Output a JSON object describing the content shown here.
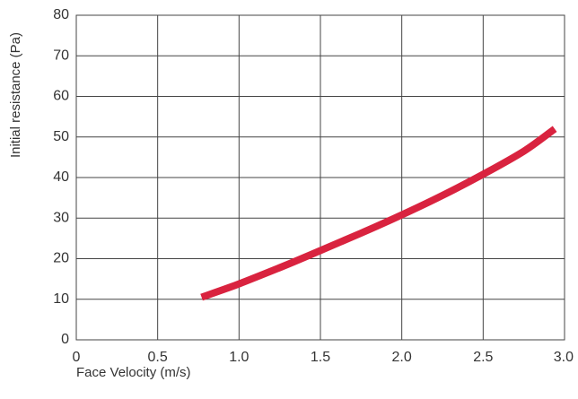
{
  "chart_data": {
    "type": "line",
    "title": "",
    "xlabel": "Face Velocity (m/s)",
    "ylabel": "Initial resistance (Pa)",
    "xlim": [
      0,
      3.0
    ],
    "ylim": [
      0,
      80
    ],
    "x_ticks": [
      "0",
      "0.5",
      "1.0",
      "1.5",
      "2.0",
      "2.5",
      "3.0"
    ],
    "y_ticks": [
      "0",
      "10",
      "20",
      "30",
      "40",
      "50",
      "60",
      "70",
      "80"
    ],
    "grid": true,
    "legend": "none",
    "series": [
      {
        "color": "#d9233f",
        "x": [
          0.77,
          1.0,
          1.25,
          1.5,
          1.75,
          2.0,
          2.25,
          2.5,
          2.75,
          2.94
        ],
        "y": [
          10.5,
          13.8,
          17.8,
          22.0,
          26.3,
          30.8,
          35.6,
          40.8,
          46.5,
          52.0
        ]
      }
    ]
  }
}
